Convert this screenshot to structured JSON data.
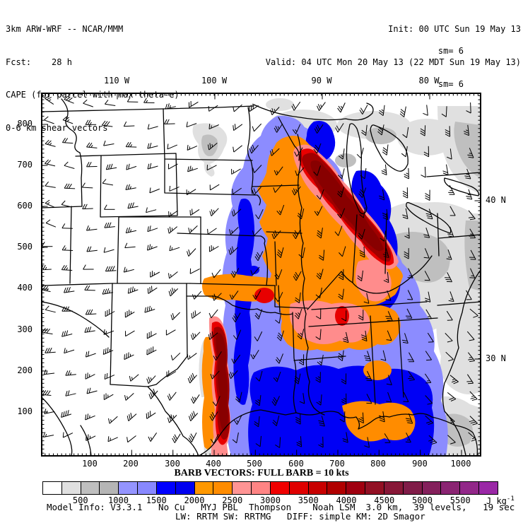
{
  "header": {
    "left": [
      "3km ARW-WRF -- NCAR/MMM",
      "Fcst:    28 h",
      "CAPE (for parcel with max theta-e)",
      "0-6 km shear vectors"
    ],
    "right": [
      "Init: 00 UTC Sun 19 May 13",
      "Valid: 04 UTC Mon 20 May 13 (22 MDT Sun 19 May 13)"
    ],
    "sm_lines": [
      "sm= 6",
      "sm= 6"
    ]
  },
  "map": {
    "axes": {
      "top": [
        "110 W",
        "100 W",
        "90 W",
        "80 W"
      ],
      "right": [
        "40 N",
        "30 N"
      ],
      "left": [
        "800",
        "700",
        "600",
        "500",
        "400",
        "300",
        "200",
        "100"
      ],
      "bottom": [
        "100",
        "200",
        "300",
        "400",
        "500",
        "600",
        "700",
        "800",
        "900",
        "1000"
      ]
    }
  },
  "barb_legend": "BARB VECTORS:  FULL BARB = 10 kts",
  "colorbar": {
    "tick_labels": [
      "500",
      "1000",
      "1500",
      "2000",
      "2500",
      "3000",
      "3500",
      "4000",
      "4500",
      "5000",
      "5500"
    ],
    "unit": "J kg",
    "unit_sup": "-1",
    "colors": [
      "#ffffff",
      "#e0e0e0",
      "#bfbfbf",
      "#b5b5b5",
      "#9494ff",
      "#8888ff",
      "#0000ff",
      "#0000f0",
      "#ff9800",
      "#ff8c00",
      "#ff9494",
      "#ff8484",
      "#f00000",
      "#e00000",
      "#c80000",
      "#b00000",
      "#a00010",
      "#921024",
      "#871737",
      "#801c48",
      "#84205c",
      "#8a2472",
      "#922789",
      "#9a28a6"
    ]
  },
  "model_info": [
    "Model Info: V3.3.1   No Cu   MYJ PBL  Thompson    Noah LSM  3.0 km,  39 levels,   19 sec",
    "LW: RRTM SW: RRTMG   DIFF: simple KM: 2D Smagor"
  ],
  "chart_data": {
    "type": "heatmap",
    "field": "CAPE (for parcel with max theta-e)",
    "units": "J kg-1",
    "bin_start": 0,
    "bin_step": 250,
    "num_bins": 24,
    "scale_tick_values": [
      500,
      1000,
      1500,
      2000,
      2500,
      3000,
      3500,
      4000,
      4500,
      5000,
      5500
    ],
    "wind_overlay": "0-6 km shear vectors",
    "barb_convention": "FULL BARB = 10 kts",
    "x_ticks_km": [
      100,
      200,
      300,
      400,
      500,
      600,
      700,
      800,
      900,
      1000
    ],
    "y_ticks_km": [
      100,
      200,
      300,
      400,
      500,
      600,
      700,
      800
    ],
    "lon_ticks": [
      "110 W",
      "100 W",
      "90 W",
      "80 W"
    ],
    "lat_ticks": [
      "40 N",
      "30 N"
    ]
  }
}
